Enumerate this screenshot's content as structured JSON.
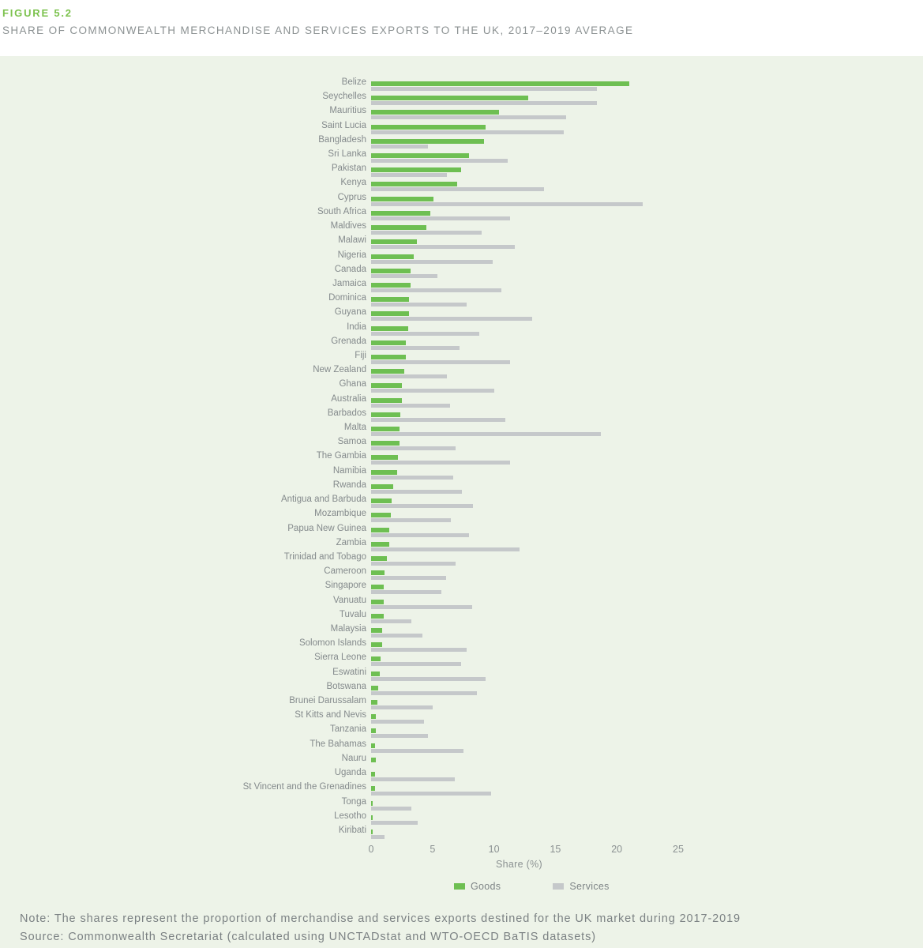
{
  "figure": {
    "label": "FIGURE 5.2",
    "title": "SHARE OF COMMONWEALTH MERCHANDISE AND SERVICES EXPORTS TO THE UK, 2017–2019 AVERAGE"
  },
  "chart_data": {
    "type": "bar",
    "orientation": "horizontal",
    "title": "Share of Commonwealth merchandise and services exports to the UK, 2017–2019 average",
    "xlabel": "Share (%)",
    "ylabel": "",
    "xlim": [
      0,
      27
    ],
    "xticks": [
      0,
      5,
      10,
      15,
      20,
      25
    ],
    "grid": false,
    "legend_position": "bottom",
    "legend": [
      "Goods",
      "Services"
    ],
    "colors": {
      "goods": "#6ebf52",
      "services": "#c5c8ca",
      "panel_background": "#edf3e8",
      "figure_label": "#7cc24e",
      "text": "#8b9192"
    },
    "categories": [
      "Belize",
      "Seychelles",
      "Mauritius",
      "Saint Lucia",
      "Bangladesh",
      "Sri Lanka",
      "Pakistan",
      "Kenya",
      "Cyprus",
      "South Africa",
      "Maldives",
      "Malawi",
      "Nigeria",
      "Canada",
      "Jamaica",
      "Dominica",
      "Guyana",
      "India",
      "Grenada",
      "Fiji",
      "New Zealand",
      "Ghana",
      "Australia",
      "Barbados",
      "Malta",
      "Samoa",
      "The Gambia",
      "Namibia",
      "Rwanda",
      "Antigua and Barbuda",
      "Mozambique",
      "Papua New Guinea",
      "Zambia",
      "Trinidad and Tobago",
      "Cameroon",
      "Singapore",
      "Vanuatu",
      "Tuvalu",
      "Malaysia",
      "Solomon Islands",
      "Sierra Leone",
      "Eswatini",
      "Botswana",
      "Brunei Darussalam",
      "St Kitts and Nevis",
      "Tanzania",
      "The Bahamas",
      "Nauru",
      "Uganda",
      "St Vincent and the Grenadines",
      "Tonga",
      "Lesotho",
      "Kiribati"
    ],
    "series": [
      {
        "name": "Goods",
        "values": [
          21.0,
          12.8,
          10.4,
          9.3,
          9.2,
          8.0,
          7.3,
          7.0,
          5.1,
          4.8,
          4.5,
          3.7,
          3.5,
          3.2,
          3.2,
          3.1,
          3.1,
          3.0,
          2.8,
          2.8,
          2.7,
          2.5,
          2.5,
          2.4,
          2.3,
          2.3,
          2.2,
          2.1,
          1.8,
          1.7,
          1.6,
          1.5,
          1.5,
          1.3,
          1.1,
          1.0,
          1.0,
          1.0,
          0.9,
          0.9,
          0.8,
          0.7,
          0.6,
          0.5,
          0.4,
          0.4,
          0.3,
          0.4,
          0.3,
          0.3,
          0.1,
          0.1,
          0.1
        ]
      },
      {
        "name": "Services",
        "values": [
          18.4,
          18.4,
          15.9,
          15.7,
          4.6,
          11.1,
          6.2,
          14.1,
          22.1,
          11.3,
          9.0,
          11.7,
          9.9,
          5.4,
          10.6,
          7.8,
          13.1,
          8.8,
          7.2,
          11.3,
          6.2,
          10.0,
          6.4,
          10.9,
          18.7,
          6.9,
          11.3,
          6.7,
          7.4,
          8.3,
          6.5,
          8.0,
          12.1,
          6.9,
          6.1,
          5.7,
          8.2,
          3.3,
          4.2,
          7.8,
          7.3,
          9.3,
          8.6,
          5.0,
          4.3,
          4.6,
          7.5,
          0,
          6.8,
          9.8,
          3.3,
          3.8,
          1.1
        ]
      }
    ]
  },
  "notes": {
    "note": "Note: The shares represent the proportion of merchandise and services exports destined for the UK market during 2017-2019",
    "source": "Source: Commonwealth Secretariat (calculated using UNCTADstat and WTO-OECD BaTIS datasets)"
  }
}
